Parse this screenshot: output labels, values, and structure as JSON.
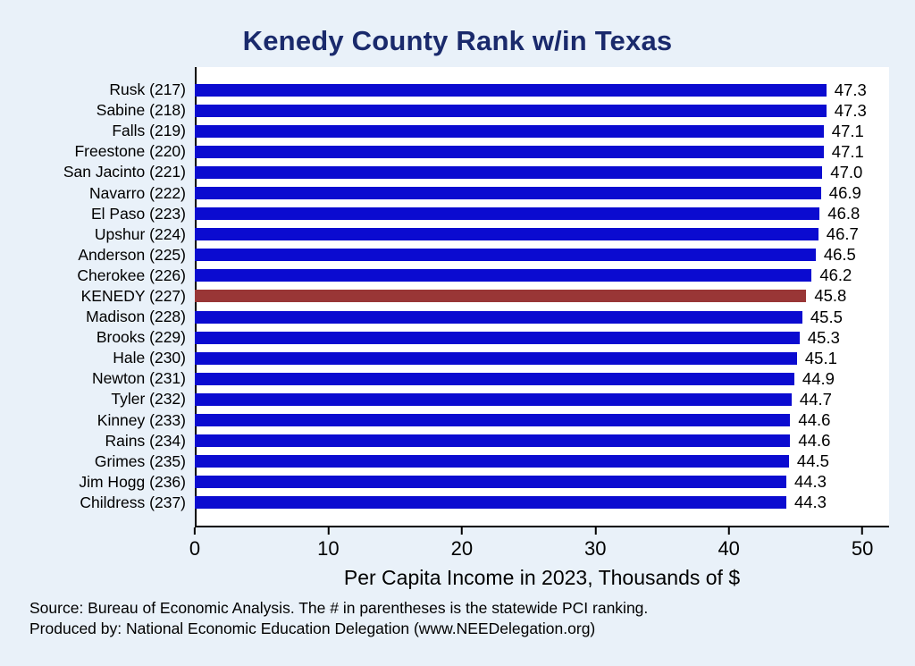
{
  "title": "Kenedy County Rank w/in Texas",
  "footer": {
    "source_line": "Source: Bureau of Economic Analysis. The # in parentheses is the statewide PCI ranking.",
    "produced_line": "Produced by: National Economic Education Delegation (www.NEEDelegation.org)"
  },
  "chart_data": {
    "type": "bar",
    "orientation": "horizontal",
    "title": "Kenedy County Rank w/in Texas",
    "xlabel": "Per Capita Income in 2023, Thousands of $",
    "ylabel": "",
    "xlim": [
      0,
      52
    ],
    "xticks": [
      0,
      10,
      20,
      30,
      40,
      50
    ],
    "grid": false,
    "legend": "none",
    "categories": [
      "Rusk (217)",
      "Sabine (218)",
      "Falls (219)",
      "Freestone (220)",
      "San Jacinto (221)",
      "Navarro (222)",
      "El Paso (223)",
      "Upshur (224)",
      "Anderson (225)",
      "Cherokee (226)",
      "KENEDY (227)",
      "Madison (228)",
      "Brooks (229)",
      "Hale (230)",
      "Newton (231)",
      "Tyler (232)",
      "Kinney (233)",
      "Rains (234)",
      "Grimes (235)",
      "Jim Hogg (236)",
      "Childress (237)"
    ],
    "values": [
      47.3,
      47.3,
      47.1,
      47.1,
      47.0,
      46.9,
      46.8,
      46.7,
      46.5,
      46.2,
      45.8,
      45.5,
      45.3,
      45.1,
      44.9,
      44.7,
      44.6,
      44.6,
      44.5,
      44.3,
      44.3
    ],
    "highlight_index": 10,
    "highlight_category": "KENEDY (227)",
    "bar_color": "#0b0bd0",
    "highlight_color": "#993636"
  },
  "colors": {
    "background": "#e9f1f9",
    "plot_background": "#ffffff",
    "title": "#1a2a6c",
    "axis": "#000000",
    "text": "#000000"
  }
}
